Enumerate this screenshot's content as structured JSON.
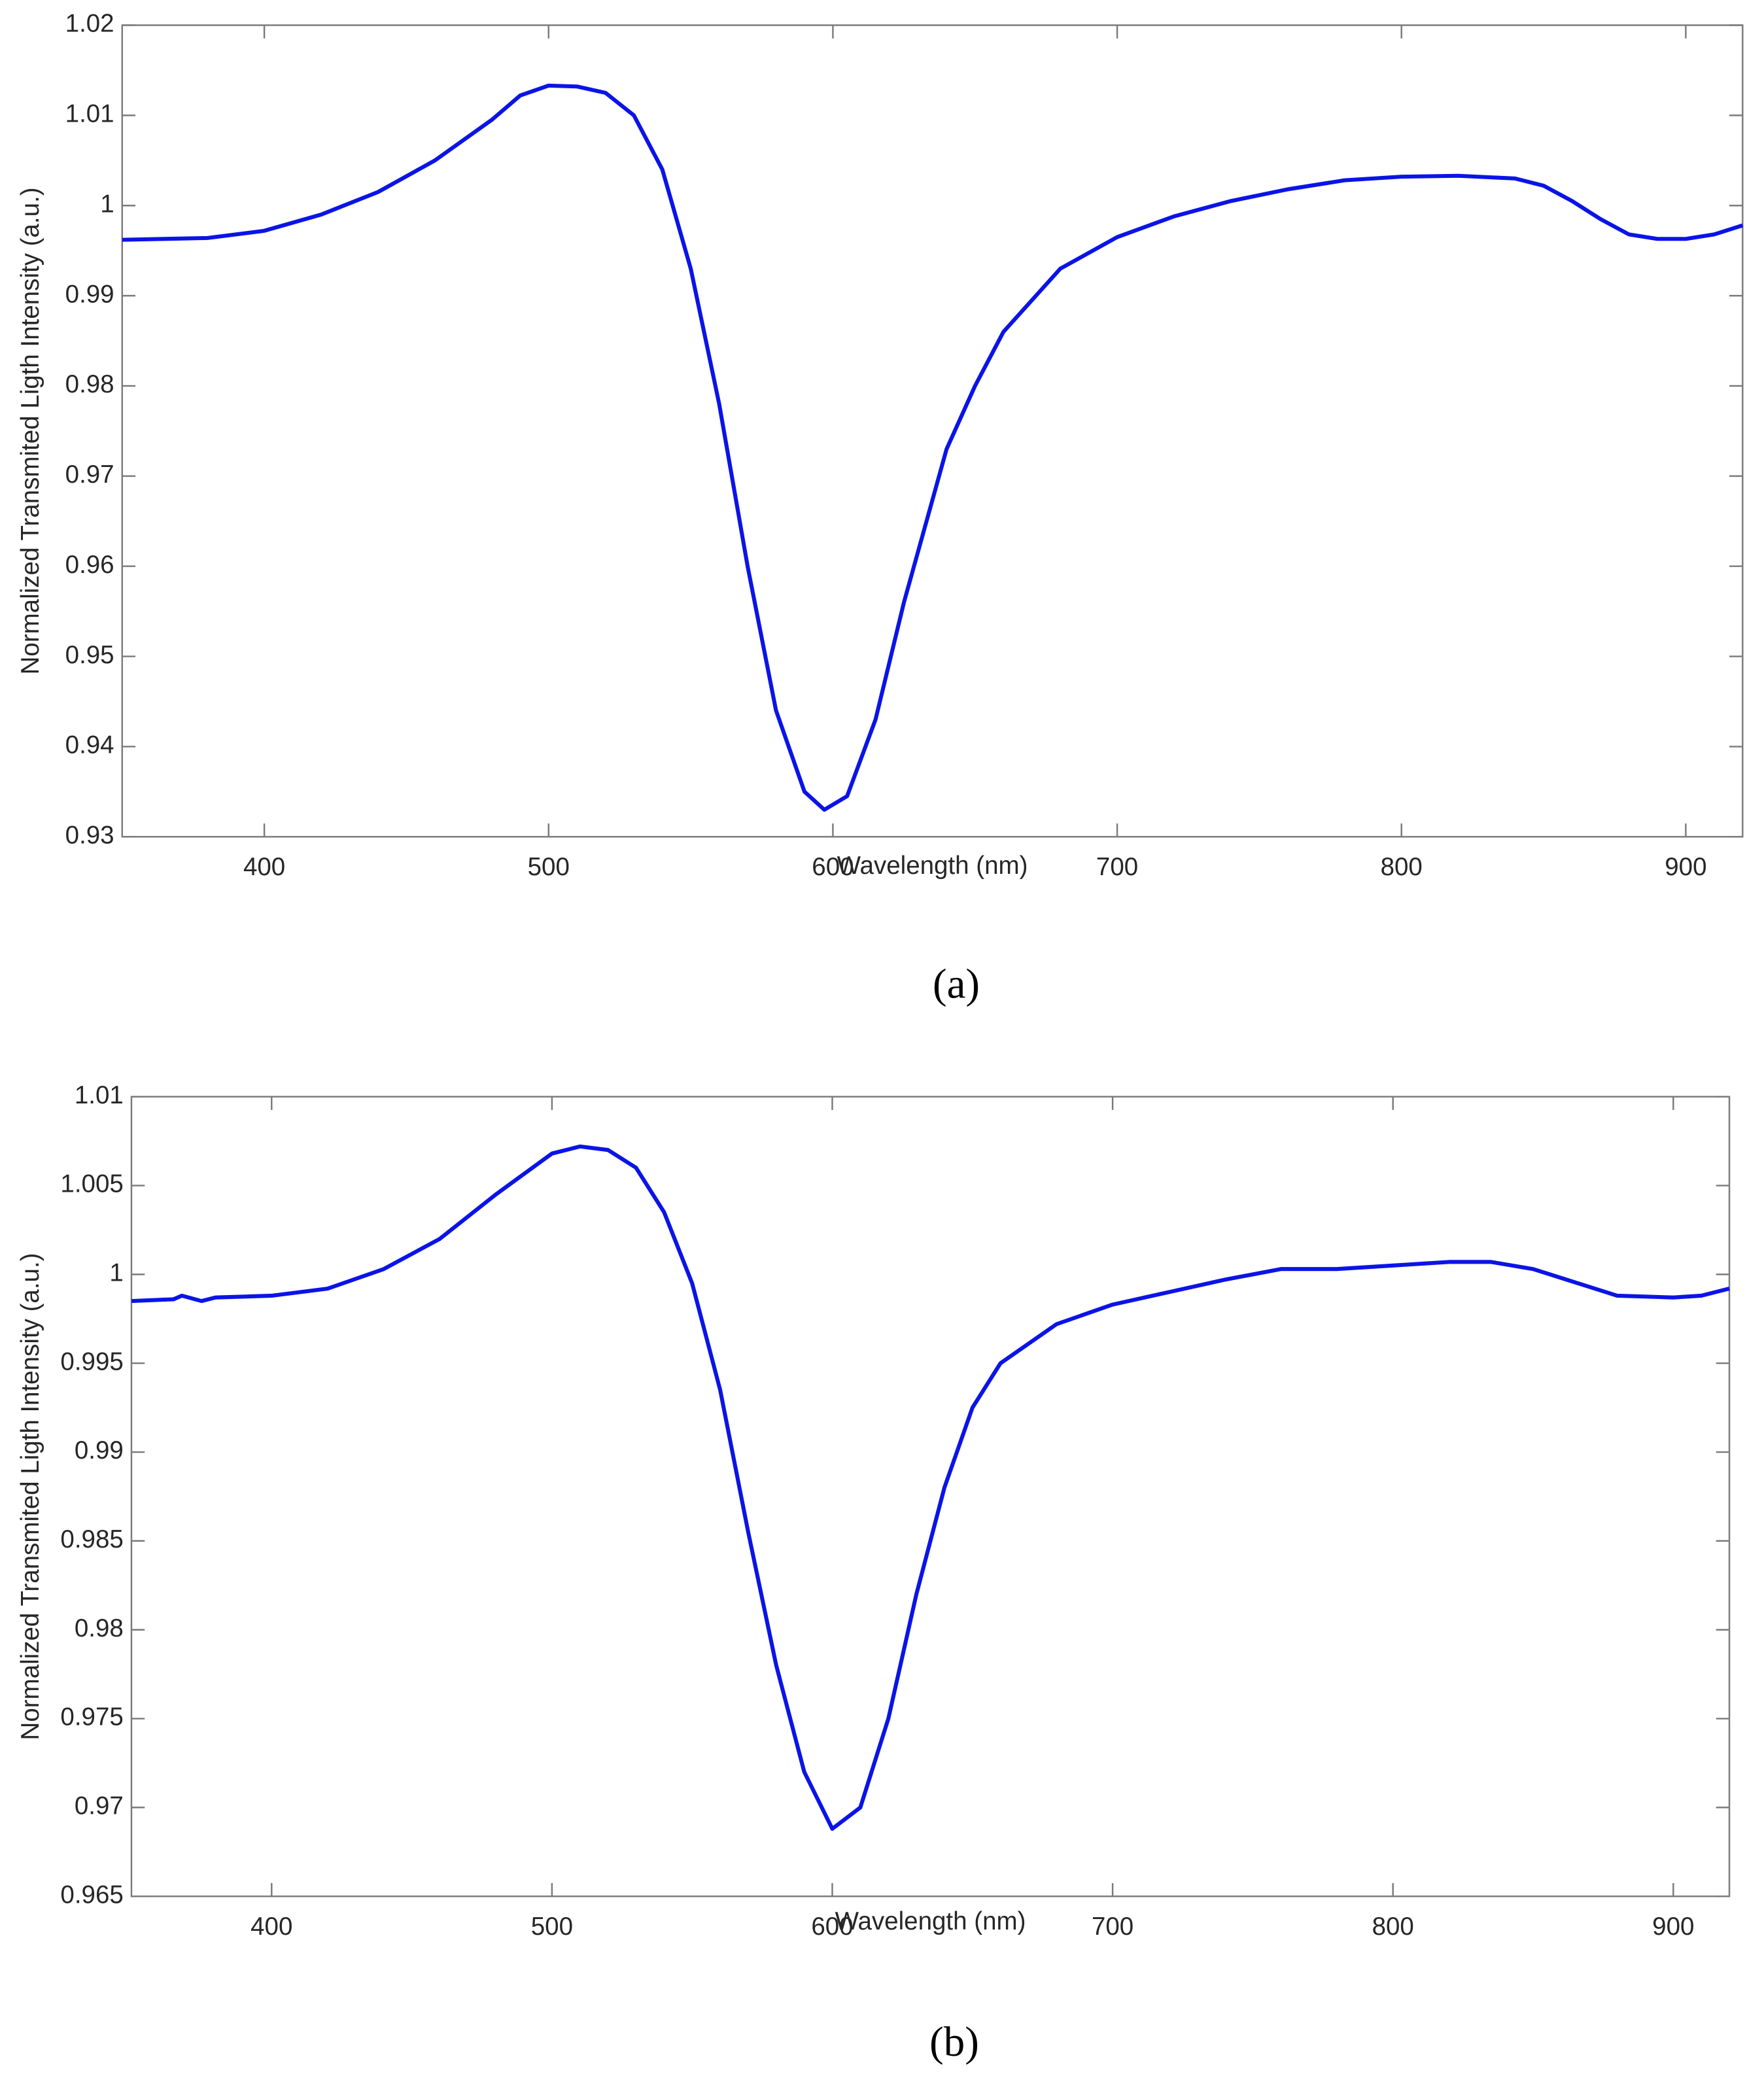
{
  "chart_data": [
    {
      "type": "line",
      "caption": "(a)",
      "xlabel": "Wavelength (nm)",
      "ylabel": "Normalized Transmited Ligth Intensity (a.u.)",
      "xlim": [
        350,
        920
      ],
      "xticks": [
        400,
        500,
        600,
        700,
        800,
        900
      ],
      "ylim": [
        0.93,
        1.02
      ],
      "yticks": [
        0.93,
        0.94,
        0.95,
        0.96,
        0.97,
        0.98,
        0.99,
        1,
        1.01,
        1.02
      ],
      "x": [
        350,
        380,
        400,
        420,
        440,
        460,
        480,
        490,
        500,
        510,
        520,
        530,
        540,
        550,
        560,
        570,
        580,
        590,
        597,
        605,
        615,
        625,
        640,
        650,
        660,
        680,
        700,
        720,
        740,
        760,
        780,
        800,
        820,
        840,
        850,
        860,
        870,
        880,
        890,
        900,
        910,
        920
      ],
      "series": [
        {
          "color": "#0a14e6",
          "values": [
            0.9962,
            0.9964,
            0.9972,
            0.999,
            1.0015,
            1.005,
            1.0095,
            1.0122,
            1.0133,
            1.0132,
            1.0125,
            1.01,
            1.004,
            0.993,
            0.978,
            0.96,
            0.944,
            0.935,
            0.933,
            0.9345,
            0.943,
            0.956,
            0.973,
            0.98,
            0.986,
            0.993,
            0.9965,
            0.9988,
            1.0005,
            1.0018,
            1.0028,
            1.0032,
            1.0033,
            1.003,
            1.0022,
            1.0005,
            0.9985,
            0.9968,
            0.9963,
            0.9963,
            0.9968,
            0.9978
          ]
        }
      ]
    },
    {
      "type": "line",
      "caption": "(b)",
      "xlabel": "Wavelength (nm)",
      "ylabel": "Normalized Transmited Ligth Intensity (a.u.)",
      "xlim": [
        350,
        920
      ],
      "xticks": [
        400,
        500,
        600,
        700,
        800,
        900
      ],
      "ylim": [
        0.965,
        1.01
      ],
      "yticks": [
        0.965,
        0.97,
        0.975,
        0.98,
        0.985,
        0.99,
        0.995,
        1,
        1.005,
        1.01
      ],
      "x": [
        350,
        365,
        368,
        375,
        380,
        400,
        420,
        440,
        460,
        480,
        500,
        510,
        520,
        530,
        540,
        550,
        560,
        570,
        580,
        590,
        600,
        610,
        620,
        630,
        640,
        650,
        660,
        680,
        700,
        720,
        740,
        760,
        780,
        800,
        820,
        835,
        850,
        860,
        870,
        880,
        900,
        910,
        920
      ],
      "series": [
        {
          "color": "#0a14e6",
          "values": [
            0.9985,
            0.9986,
            0.9988,
            0.9985,
            0.9987,
            0.9988,
            0.9992,
            1.0003,
            1.002,
            1.0045,
            1.0068,
            1.0072,
            1.007,
            1.006,
            1.0035,
            0.9995,
            0.9935,
            0.9855,
            0.978,
            0.972,
            0.9688,
            0.97,
            0.975,
            0.982,
            0.988,
            0.9925,
            0.995,
            0.9972,
            0.9983,
            0.999,
            0.9997,
            1.0003,
            1.0003,
            1.0005,
            1.0007,
            1.0007,
            1.0003,
            0.9998,
            0.9993,
            0.9988,
            0.9987,
            0.9988,
            0.9992
          ]
        }
      ]
    }
  ]
}
